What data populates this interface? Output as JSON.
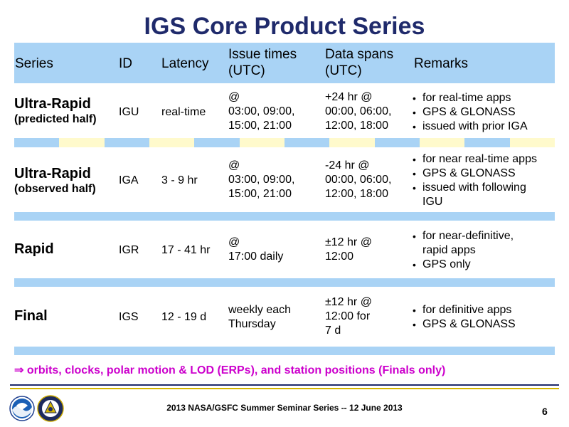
{
  "title": "IGS Core Product Series",
  "headers": {
    "series": "Series",
    "id": "ID",
    "latency": "Latency",
    "issue_times_1": "Issue times",
    "issue_times_2": "(UTC)",
    "data_spans_1": "Data spans",
    "data_spans_2": "(UTC)",
    "remarks": "Remarks"
  },
  "rows": [
    {
      "series": "Ultra-Rapid",
      "sub": "(predicted half)",
      "id": "IGU",
      "latency": "real-time",
      "issue": [
        "@",
        "03:00, 09:00,",
        "15:00, 21:00"
      ],
      "spans": [
        "+24 hr @",
        "00:00, 06:00,",
        "12:00, 18:00"
      ],
      "remarks": [
        "for real-time apps",
        "GPS & GLONASS",
        "issued with prior IGA"
      ]
    },
    {
      "series": "Ultra-Rapid",
      "sub": "(observed half)",
      "id": "IGA",
      "latency": "3 - 9 hr",
      "issue": [
        "@",
        "03:00, 09:00,",
        "15:00, 21:00"
      ],
      "spans": [
        "-24 hr @",
        "00:00, 06:00,",
        "12:00, 18:00"
      ],
      "remarks": [
        "for near real-time apps",
        "GPS & GLONASS",
        "issued with following IGU"
      ]
    },
    {
      "series": "Rapid",
      "sub": "",
      "id": "IGR",
      "latency": "17 - 41 hr",
      "issue": [
        "@",
        "17:00 daily"
      ],
      "spans": [
        "±12 hr @",
        "12:00"
      ],
      "remarks": [
        "for near-definitive, rapid apps",
        "GPS only"
      ]
    },
    {
      "series": "Final",
      "sub": "",
      "id": "IGS",
      "latency": "12 - 19 d",
      "issue": [
        "weekly each",
        "Thursday"
      ],
      "spans": [
        "±12 hr @",
        "12:00 for",
        "7 d"
      ],
      "remarks": [
        "for definitive apps",
        "GPS & GLONASS"
      ]
    }
  ],
  "footnote": "⇒ orbits, clocks, polar motion & LOD (ERPs), and station positions (Finals only)",
  "footer": "2013 NASA/GSFC Summer Seminar Series -- 12 June 2013",
  "page_number": "6",
  "logos": [
    "noaa-logo",
    "ngs-seal"
  ],
  "colors": {
    "title": "#1f2a6b",
    "header_bg": "#a9d3f5",
    "dash_alt": "#fffacc",
    "footnote": "#cc00cc",
    "rule_navy": "#1f2a6b",
    "rule_gold": "#d4b400"
  }
}
